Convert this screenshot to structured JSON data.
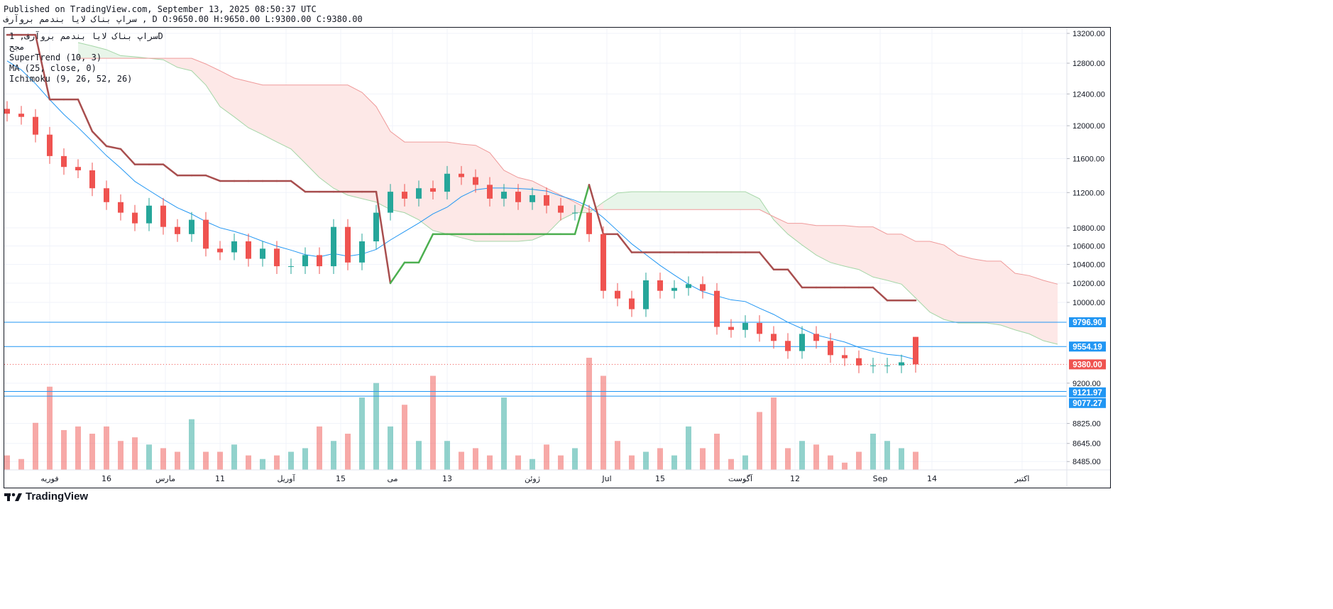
{
  "header": {
    "published": "Published on TradingView.com, September 13, 2025 08:50:37 UTC",
    "ohlc_line": "سراپ بناک لایا بندمم بروآرف , D O:9650.00 H:9650.00 L:9300.00 C:9380.00"
  },
  "legend": {
    "symbol_line": "سراپ بناک لایا بندمم بروآرف, 1D",
    "exchange": "مجح",
    "indicators": [
      "SuperTrend (10, 3)",
      "MA (25, close, 0)",
      "Ichimoku (9, 26, 52, 26)"
    ]
  },
  "footer": {
    "logo_text": "TradingView"
  },
  "colors": {
    "up": "#26a69a",
    "down": "#ef5350",
    "ma": "#2196f3",
    "supertrend_down": "#a84e4e",
    "supertrend_up": "#4caf50",
    "cloud_bull": "#e8f5e9",
    "cloud_bear": "#fde8e7",
    "hline": "#2196f3",
    "last_price": "#ef5350"
  },
  "chart_data": {
    "type": "candlestick",
    "scale": "log",
    "yaxis_ticks": [
      "13200.00",
      "12800.00",
      "12400.00",
      "12000.00",
      "11600.00",
      "11200.00",
      "10800.00",
      "10600.00",
      "10400.00",
      "10200.00",
      "10000.00",
      "9200.00",
      "8825.00",
      "8645.00",
      "8485.00"
    ],
    "xaxis_ticks": [
      "فوریه",
      "16",
      "مارس",
      "11",
      "آوریل",
      "15",
      "می",
      "13",
      "ژوئن",
      "Jul",
      "15",
      "آگوست",
      "12",
      "Sep",
      "14",
      "اکتبر"
    ],
    "last": {
      "open": 9650,
      "high": 9650,
      "low": 9300,
      "close": 9380
    },
    "closes": [
      12150,
      12110,
      11890,
      11630,
      11500,
      11460,
      11250,
      11090,
      10970,
      10850,
      11050,
      10810,
      10730,
      10890,
      10570,
      10530,
      10650,
      10460,
      10570,
      10380,
      10380,
      10500,
      10380,
      10810,
      10420,
      10650,
      10970,
      11210,
      11130,
      11250,
      11210,
      11420,
      11380,
      11290,
      11130,
      11210,
      11090,
      11170,
      11050,
      10970,
      10970,
      10730,
      10120,
      10040,
      9930,
      10230,
      10120,
      10150,
      10190,
      10120,
      9750,
      9720,
      9790,
      9680,
      9610,
      9510,
      9680,
      9610,
      9470,
      9440,
      9370,
      9370,
      9370,
      9400,
      9380
    ],
    "volume_relative": [
      20,
      15,
      65,
      115,
      55,
      60,
      50,
      60,
      40,
      45,
      35,
      30,
      25,
      70,
      25,
      25,
      35,
      20,
      15,
      20,
      25,
      30,
      60,
      40,
      50,
      100,
      120,
      60,
      90,
      40,
      130,
      40,
      25,
      30,
      20,
      100,
      20,
      15,
      35,
      20,
      30,
      155,
      130,
      40,
      20,
      25,
      30,
      20,
      60,
      30,
      50,
      15,
      20,
      80,
      100,
      30,
      40,
      35,
      20,
      10,
      25,
      50,
      40,
      30,
      25
    ],
    "supertrend": {
      "values": [
        13180,
        13180,
        13180,
        12330,
        12330,
        12330,
        11930,
        11750,
        11715,
        11530,
        11530,
        11530,
        11400,
        11400,
        11400,
        11335,
        11335,
        11335,
        11335,
        11335,
        11335,
        11210,
        11210,
        11210,
        11210,
        11210,
        11210,
        10200,
        10420,
        10420,
        10730,
        10730,
        10730,
        10730,
        10730,
        10730,
        10730,
        10730,
        10730,
        10730,
        10730,
        11290,
        10730,
        10730,
        10530,
        10530,
        10530,
        10530,
        10530,
        10530,
        10530,
        10530,
        10530,
        10530,
        10345,
        10345,
        10155,
        10155,
        10155,
        10155,
        10155,
        10155,
        10020,
        10020,
        10020
      ],
      "trend": "dddddddddddddddddddddddddddduuuuuuuuuuuuuudddddddddddddddddddddddd"
    },
    "ichimoku": {
      "cloud_start_index": 5,
      "span_a": [
        13075,
        13030,
        12980,
        12900,
        12885,
        12865,
        12845,
        12745,
        12700,
        12515,
        12240,
        12110,
        11975,
        11890,
        11800,
        11715,
        11545,
        11375,
        11250,
        11170,
        11130,
        11090,
        11005,
        10970,
        10890,
        10770,
        10730,
        10690,
        10650,
        10650,
        10650,
        10650,
        10665,
        10730,
        10890,
        10970,
        10970,
        11090,
        11195,
        11210,
        11210,
        11210,
        11210,
        11210,
        11210,
        11210,
        11210,
        11210,
        11130,
        10890,
        10730,
        10610,
        10500,
        10420,
        10380,
        10345,
        10265,
        10230,
        10190,
        10045,
        9900,
        9825,
        9790,
        9790,
        9790,
        9768,
        9720,
        9680,
        9612,
        9577
      ],
      "span_b": [
        12865,
        12865,
        12865,
        12865,
        12865,
        12865,
        12865,
        12865,
        12865,
        12790,
        12700,
        12605,
        12560,
        12515,
        12515,
        12515,
        12515,
        12515,
        12515,
        12515,
        12420,
        12240,
        11930,
        11800,
        11800,
        11800,
        11800,
        11775,
        11760,
        11670,
        11460,
        11375,
        11335,
        11250,
        11170,
        11090,
        11005,
        11005,
        11005,
        11005,
        11005,
        11005,
        11005,
        11005,
        11005,
        11005,
        11005,
        11005,
        11005,
        10925,
        10850,
        10850,
        10825,
        10825,
        10825,
        10810,
        10810,
        10730,
        10730,
        10650,
        10650,
        10610,
        10500,
        10460,
        10435,
        10435,
        10305,
        10280,
        10230,
        10190
      ]
    },
    "ma_window_points": 8,
    "horizontal_lines": [
      {
        "price": 9796.9,
        "label": "9796.90"
      },
      {
        "price": 9554.19,
        "label": "9554.19"
      },
      {
        "price": 9121.97,
        "label": "9121.97"
      },
      {
        "price": 9077.27,
        "label": "9077.27"
      }
    ],
    "last_price_label": "9380.00"
  }
}
